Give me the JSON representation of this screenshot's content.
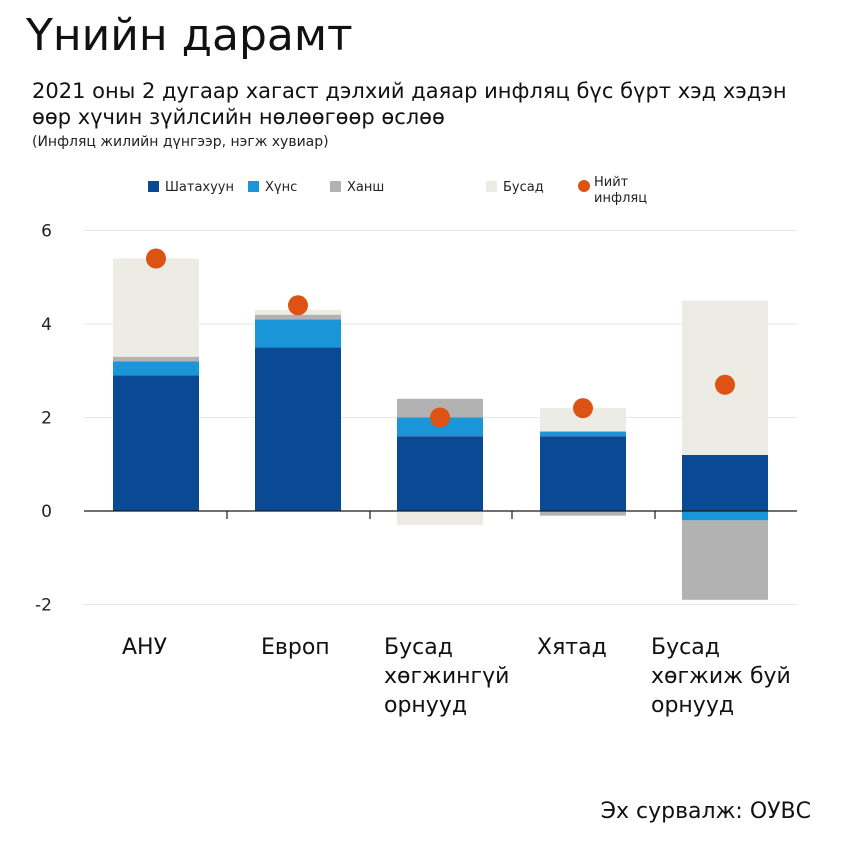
{
  "header": {
    "title": "Үнийн дарамт",
    "subtitle": "2021 оны 2 дугаар хагаст дэлхий даяар инфляц бүс бүрт хэд хэдэн өөр хүчин зүйлсийн нөлөөгөөр өслөө",
    "note": "(Инфляц жилийн дүнгээр, нэгж хувиар)"
  },
  "footer": {
    "source": "Эх сурвалж: ОУВС"
  },
  "chart_data": {
    "type": "bar",
    "stacked": true,
    "categories": [
      [
        "АНУ"
      ],
      [
        "Европ"
      ],
      [
        "Бусад",
        "хөгжингүй",
        "орнууд"
      ],
      [
        "Хятад"
      ],
      [
        "Бусад",
        "хөгжиж буй",
        "орнууд"
      ]
    ],
    "series": [
      {
        "name": "Шатахуун",
        "color": "#0a4a94",
        "values": [
          2.9,
          3.5,
          1.6,
          1.6,
          1.2
        ]
      },
      {
        "name": "Хүнс",
        "color": "#1a96d8",
        "values": [
          0.3,
          0.6,
          0.4,
          0.1,
          -0.2
        ]
      },
      {
        "name": "Ханш",
        "color": "#b2b2b2",
        "values": [
          0.1,
          0.1,
          0.4,
          -0.1,
          -1.7
        ]
      },
      {
        "name": "Бусад",
        "color": "#ecebe4",
        "values": [
          2.1,
          0.1,
          -0.3,
          0.5,
          3.3
        ]
      }
    ],
    "total": {
      "name": "Нийт инфляц",
      "color": "#dc5314",
      "values": [
        5.4,
        4.4,
        2.0,
        2.2,
        2.7
      ]
    },
    "yticks": [
      6,
      4,
      2,
      0,
      -2
    ],
    "ylim": [
      -2.4,
      6.2
    ],
    "grid": true,
    "legend_position": "top"
  }
}
